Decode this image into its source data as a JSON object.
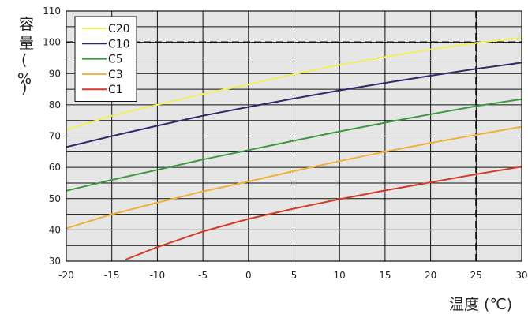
{
  "chart_data": {
    "type": "line",
    "title": "",
    "ylabel": [
      "容",
      "量",
      "(",
      "%",
      ")"
    ],
    "xlabel": "温度 (℃)",
    "xlim": [
      -20,
      30
    ],
    "ylim": [
      30,
      110
    ],
    "xticks": [
      -20,
      -15,
      -10,
      -5,
      0,
      5,
      10,
      15,
      20,
      25,
      30
    ],
    "yticks": [
      30,
      40,
      50,
      60,
      70,
      80,
      90,
      100,
      110
    ],
    "grid": true,
    "legend_position": "top-left",
    "reference_lines": {
      "y": 100,
      "x": 25,
      "style": "dashed"
    },
    "series": [
      {
        "name": "C20",
        "color": "#f3ee5c",
        "x": [
          -20,
          -15,
          -10,
          -5,
          0,
          5,
          10,
          15,
          20,
          25,
          30
        ],
        "y": [
          72,
          76.5,
          80,
          83.5,
          86.5,
          89.8,
          92.8,
          95.3,
          97.7,
          99.8,
          101.5
        ]
      },
      {
        "name": "C10",
        "color": "#2e2d6b",
        "x": [
          -20,
          -15,
          -10,
          -5,
          0,
          5,
          10,
          15,
          20,
          25,
          30
        ],
        "y": [
          66.5,
          70,
          73.3,
          76.5,
          79.3,
          82,
          84.6,
          87,
          89.3,
          91.5,
          93.5
        ]
      },
      {
        "name": "C5",
        "color": "#3d9a41",
        "x": [
          -20,
          -15,
          -10,
          -5,
          0,
          5,
          10,
          15,
          20,
          25,
          30
        ],
        "y": [
          52.5,
          56,
          59.2,
          62.5,
          65.5,
          68.5,
          71.5,
          74.3,
          77,
          79.6,
          81.8
        ]
      },
      {
        "name": "C3",
        "color": "#f0b13a",
        "x": [
          -20,
          -15,
          -10,
          -5,
          0,
          5,
          10,
          15,
          20,
          25,
          30
        ],
        "y": [
          40.5,
          45,
          48.7,
          52.3,
          55.5,
          58.8,
          62,
          65,
          67.8,
          70.4,
          73
        ]
      },
      {
        "name": "C1",
        "color": "#d63a2a",
        "x": [
          -13.5,
          -10,
          -5,
          0,
          5,
          10,
          15,
          20,
          25,
          30
        ],
        "y": [
          30.5,
          34.5,
          39.5,
          43.5,
          46.8,
          49.8,
          52.6,
          55.2,
          57.8,
          60.2
        ]
      }
    ]
  }
}
